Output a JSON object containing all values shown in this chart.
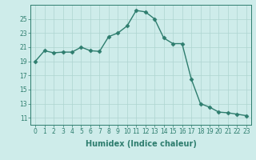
{
  "x": [
    0,
    1,
    2,
    3,
    4,
    5,
    6,
    7,
    8,
    9,
    10,
    11,
    12,
    13,
    14,
    15,
    16,
    17,
    18,
    19,
    20,
    21,
    22,
    23
  ],
  "y": [
    19,
    20.5,
    20.2,
    20.3,
    20.3,
    21,
    20.5,
    20.4,
    22.5,
    23,
    24,
    26.2,
    26,
    25,
    22.3,
    21.5,
    21.5,
    16.5,
    13,
    12.5,
    11.8,
    11.7,
    11.5,
    11.3
  ],
  "line_color": "#2e7d6e",
  "marker": "D",
  "marker_size": 2.5,
  "line_width": 1.0,
  "bg_color": "#ceecea",
  "grid_color_major": "#aed4d0",
  "grid_color_minor": "#c4e4e1",
  "xlabel": "Humidex (Indice chaleur)",
  "xlim": [
    -0.5,
    23.5
  ],
  "ylim": [
    10,
    27
  ],
  "yticks": [
    11,
    13,
    15,
    17,
    19,
    21,
    23,
    25
  ],
  "xticks": [
    0,
    1,
    2,
    3,
    4,
    5,
    6,
    7,
    8,
    9,
    10,
    11,
    12,
    13,
    14,
    15,
    16,
    17,
    18,
    19,
    20,
    21,
    22,
    23
  ],
  "tick_label_size": 5.5,
  "xlabel_size": 7.0
}
